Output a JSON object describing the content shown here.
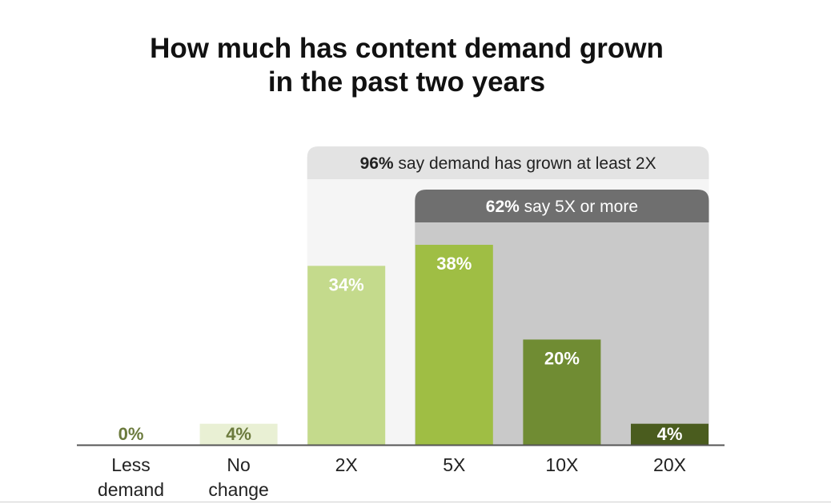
{
  "title_line1": "How much has content demand grown",
  "title_line2": "in the past two years",
  "chart_data": {
    "type": "bar",
    "categories": [
      [
        "Less",
        "demand"
      ],
      [
        "No",
        "change"
      ],
      [
        "2X"
      ],
      [
        "5X"
      ],
      [
        "10X"
      ],
      [
        "20X"
      ]
    ],
    "values": [
      0,
      4,
      34,
      38,
      20,
      4
    ],
    "value_labels": [
      "0%",
      "4%",
      "34%",
      "38%",
      "20%",
      "4%"
    ],
    "ylim": [
      0,
      40
    ],
    "colors": [
      "#e9f0d4",
      "#e9f0d4",
      "#c4da8c",
      "#9fbe44",
      "#708c33",
      "#4a5c1e"
    ],
    "label_colors": [
      "#6b7a3c",
      "#6b7a3c",
      "#ffffff",
      "#ffffff",
      "#ffffff",
      "#ffffff"
    ],
    "annotations": [
      {
        "bold": "96%",
        "text": " say demand has grown at least 2X",
        "from": "2X",
        "to": "20X",
        "header_color": "#e3e3e3",
        "body_color": "#f5f5f5",
        "text_color": "#222222"
      },
      {
        "bold": "62%",
        "text": " say 5X or more",
        "from": "5X",
        "to": "20X",
        "header_color": "#6f6f6f",
        "body_color": "#c9c9c9",
        "text_color": "#ffffff"
      }
    ]
  }
}
